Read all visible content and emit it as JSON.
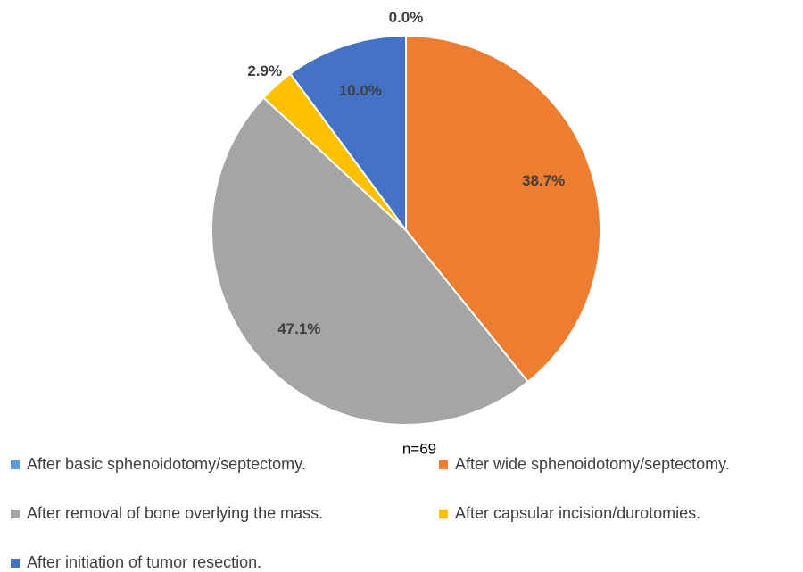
{
  "chart_data": {
    "type": "pie",
    "categories": [
      "After basic sphenoidotomy/septectomy.",
      "After wide sphenoidotomy/septectomy.",
      "After removal of bone overlying the mass.",
      "After capsular incision/durotomies.",
      "After initiation of tumor resection."
    ],
    "values": [
      0.0,
      38.7,
      47.1,
      2.9,
      10.0
    ],
    "value_labels": [
      "0.0%",
      "38.7%",
      "47.1%",
      "2.9%",
      "10.0%"
    ],
    "colors": [
      "#5b9bd5",
      "#ed7d31",
      "#a5a5a5",
      "#ffc000",
      "#4472c4"
    ],
    "annotation": "n=69",
    "legend": "bottom"
  }
}
